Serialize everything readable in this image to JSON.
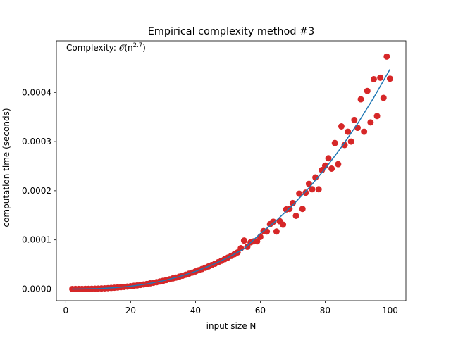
{
  "chart_data": {
    "type": "scatter",
    "title": "Empirical complexity method #3",
    "xlabel": "input size N",
    "ylabel": "computation time (seconds)",
    "annotation": {
      "prefix": "Complexity: 𝒪(",
      "base": "n",
      "exponent": "2.7",
      "suffix": ")"
    },
    "xlim": [
      -2.9,
      104.9
    ],
    "ylim": [
      -2.37e-05,
      0.000505
    ],
    "xticks": [
      0,
      20,
      40,
      60,
      80,
      100
    ],
    "yticks": [
      {
        "value": 0,
        "label": "0.0000"
      },
      {
        "value": 0.0001,
        "label": "0.0001"
      },
      {
        "value": 0.0002,
        "label": "0.0002"
      },
      {
        "value": 0.0003,
        "label": "0.0003"
      },
      {
        "value": 0.0004,
        "label": "0.0004"
      }
    ],
    "series": [
      {
        "type": "scatter",
        "color": "#d62728",
        "x": [
          2,
          3,
          4,
          5,
          6,
          7,
          8,
          9,
          10,
          11,
          12,
          13,
          14,
          15,
          16,
          17,
          18,
          19,
          20,
          21,
          22,
          23,
          24,
          25,
          26,
          27,
          28,
          29,
          30,
          31,
          32,
          33,
          34,
          35,
          36,
          37,
          38,
          39,
          40,
          41,
          42,
          43,
          44,
          45,
          46,
          47,
          48,
          49,
          50,
          51,
          52,
          53,
          54,
          55,
          56,
          57,
          58,
          59,
          60,
          61,
          62,
          63,
          64,
          65,
          66,
          67,
          68,
          69,
          70,
          71,
          72,
          73,
          74,
          75,
          76,
          77,
          78,
          79,
          80,
          81,
          82,
          83,
          84,
          85,
          86,
          87,
          88,
          89,
          90,
          91,
          92,
          93,
          94,
          95,
          96,
          97,
          98,
          99,
          100
        ],
        "values": [
          1.16e-08,
          3.45e-08,
          7.5e-08,
          1.37e-07,
          2.24e-07,
          3.4e-07,
          4.88e-07,
          6.7e-07,
          8.92e-07,
          1.15e-06,
          1.46e-06,
          1.81e-06,
          2.21e-06,
          2.65e-06,
          3.15e-06,
          3.71e-06,
          4.32e-06,
          4.99e-06,
          5.71e-06,
          6.5e-06,
          7.36e-06,
          8.28e-06,
          9.27e-06,
          1.03e-05,
          1.15e-05,
          1.27e-05,
          1.39e-05,
          1.53e-05,
          1.67e-05,
          1.83e-05,
          1.99e-05,
          2.16e-05,
          2.33e-05,
          2.52e-05,
          2.71e-05,
          2.92e-05,
          3.13e-05,
          3.35e-05,
          3.58e-05,
          3.82e-05,
          4.07e-05,
          4.32e-05,
          4.59e-05,
          4.87e-05,
          5.15e-05,
          5.45e-05,
          5.76e-05,
          6.08e-05,
          6.4e-05,
          6.74e-05,
          7.09e-05,
          7.45e-05,
          8.3e-05,
          9.86e-05,
          8.6e-05,
          9.5e-05,
          9.7e-05,
          9.7e-05,
          0.000106,
          0.000118,
          0.000117,
          0.000132,
          0.000137,
          0.000117,
          0.000138,
          0.000131,
          0.000162,
          0.000163,
          0.000175,
          0.000149,
          0.000194,
          0.000163,
          0.000196,
          0.000214,
          0.000203,
          0.000227,
          0.000203,
          0.000242,
          0.000251,
          0.000266,
          0.000245,
          0.000297,
          0.000254,
          0.000331,
          0.000293,
          0.00032,
          0.0003,
          0.000344,
          0.000328,
          0.000386,
          0.00032,
          0.000403,
          0.000339,
          0.000427,
          0.000352,
          0.00043,
          0.000389,
          0.000473,
          0.000428
        ]
      },
      {
        "type": "line",
        "color": "#1f77b4",
        "x": [
          2,
          5,
          10,
          15,
          20,
          25,
          30,
          35,
          40,
          45,
          50,
          55,
          60,
          65,
          70,
          75,
          80,
          85,
          90,
          95,
          100
        ],
        "values": [
          1.16e-08,
          1.37e-07,
          8.92e-07,
          2.65e-06,
          5.71e-06,
          1.03e-05,
          1.67e-05,
          2.52e-05,
          3.58e-05,
          4.87e-05,
          6.4e-05,
          8.2e-05,
          0.0001126,
          0.0001397,
          0.0001707,
          0.0002058,
          0.0002448,
          0.0002885,
          0.0003366,
          0.0003896,
          0.0004471
        ]
      }
    ]
  }
}
